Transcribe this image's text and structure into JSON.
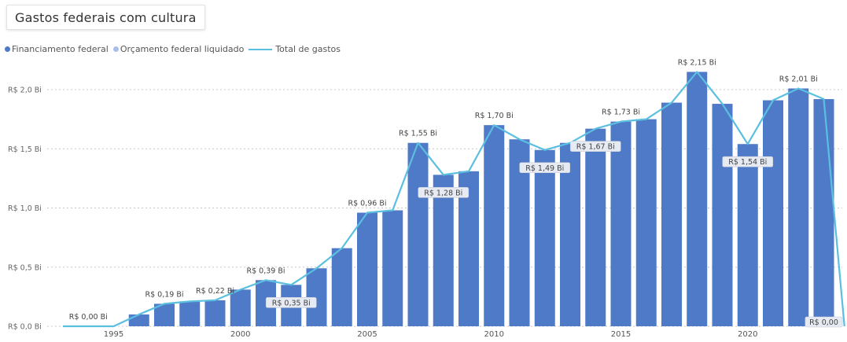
{
  "chart_data": {
    "type": "bar",
    "title": "Gastos federais com cultura",
    "legend": [
      {
        "label": "Financiamento federal",
        "kind": "dot",
        "color": "#4f7ac7"
      },
      {
        "label": "Orçamento federal liquidado",
        "kind": "dot",
        "color": "#a9bde8"
      },
      {
        "label": "Total de gastos",
        "kind": "line",
        "color": "#5bbfe0"
      }
    ],
    "legend_position": "top-left",
    "grid": true,
    "ylim": [
      0,
      2.2
    ],
    "y_ticks": [
      {
        "value": 0.0,
        "label": "R$ 0,0 Bi"
      },
      {
        "value": 0.5,
        "label": "R$ 0,5 Bi"
      },
      {
        "value": 1.0,
        "label": "R$ 1,0 Bi"
      },
      {
        "value": 1.5,
        "label": "R$ 1,5 Bi"
      },
      {
        "value": 2.0,
        "label": "R$ 2,0 Bi"
      }
    ],
    "x_ticks": [
      "1995",
      "2000",
      "2005",
      "2010",
      "2015",
      "2020"
    ],
    "years": [
      1993,
      1994,
      1995,
      1996,
      1997,
      1998,
      1999,
      2000,
      2001,
      2002,
      2003,
      2004,
      2005,
      2006,
      2007,
      2008,
      2009,
      2010,
      2011,
      2012,
      2013,
      2014,
      2015,
      2016,
      2017,
      2018,
      2019,
      2020,
      2021,
      2022,
      2023
    ],
    "series": [
      {
        "name": "Financiamento federal",
        "values": [
          0,
          0,
          0,
          0.1,
          0.19,
          0.21,
          0.22,
          0.31,
          0.39,
          0.35,
          0.49,
          0.66,
          0.96,
          0.98,
          1.55,
          1.28,
          1.31,
          1.7,
          1.58,
          1.49,
          1.55,
          1.67,
          1.73,
          1.75,
          1.89,
          2.15,
          1.88,
          1.54,
          1.91,
          2.01,
          1.92
        ]
      },
      {
        "name": "Total de gastos",
        "values": [
          0,
          0,
          0,
          0.1,
          0.19,
          0.21,
          0.22,
          0.31,
          0.39,
          0.35,
          0.49,
          0.66,
          0.96,
          0.98,
          1.55,
          1.28,
          1.31,
          1.7,
          1.58,
          1.49,
          1.55,
          1.67,
          1.73,
          1.75,
          1.89,
          2.15,
          1.88,
          1.54,
          1.91,
          2.01,
          1.92
        ]
      }
    ],
    "trailing_line_value": 0,
    "data_labels": [
      {
        "year": 1994,
        "text": "R$ 0,00 Bi",
        "boxed": false,
        "pos": "above"
      },
      {
        "year": 1997,
        "text": "R$ 0,19 Bi",
        "boxed": false,
        "pos": "above"
      },
      {
        "year": 1999,
        "text": "R$ 0,22 Bi",
        "boxed": false,
        "pos": "above"
      },
      {
        "year": 2001,
        "text": "R$ 0,39 Bi",
        "boxed": false,
        "pos": "above"
      },
      {
        "year": 2002,
        "text": "R$ 0,35 Bi",
        "boxed": true,
        "pos": "below"
      },
      {
        "year": 2005,
        "text": "R$ 0,96 Bi",
        "boxed": false,
        "pos": "above"
      },
      {
        "year": 2007,
        "text": "R$ 1,55 Bi",
        "boxed": false,
        "pos": "above"
      },
      {
        "year": 2008,
        "text": "R$ 1,28 Bi",
        "boxed": true,
        "pos": "below"
      },
      {
        "year": 2010,
        "text": "R$ 1,70 Bi",
        "boxed": false,
        "pos": "above"
      },
      {
        "year": 2012,
        "text": "R$ 1,49 Bi",
        "boxed": true,
        "pos": "below"
      },
      {
        "year": 2014,
        "text": "R$ 1,67 Bi",
        "boxed": true,
        "pos": "below"
      },
      {
        "year": 2015,
        "text": "R$ 1,73 Bi",
        "boxed": false,
        "pos": "above"
      },
      {
        "year": 2018,
        "text": "R$ 2,15 Bi",
        "boxed": false,
        "pos": "above"
      },
      {
        "year": 2020,
        "text": "R$ 1,54 Bi",
        "boxed": true,
        "pos": "below"
      },
      {
        "year": 2022,
        "text": "R$ 2,01 Bi",
        "boxed": false,
        "pos": "above"
      },
      {
        "year": 2023,
        "text": "R$ 0,00",
        "boxed": true,
        "pos": "base"
      }
    ]
  }
}
